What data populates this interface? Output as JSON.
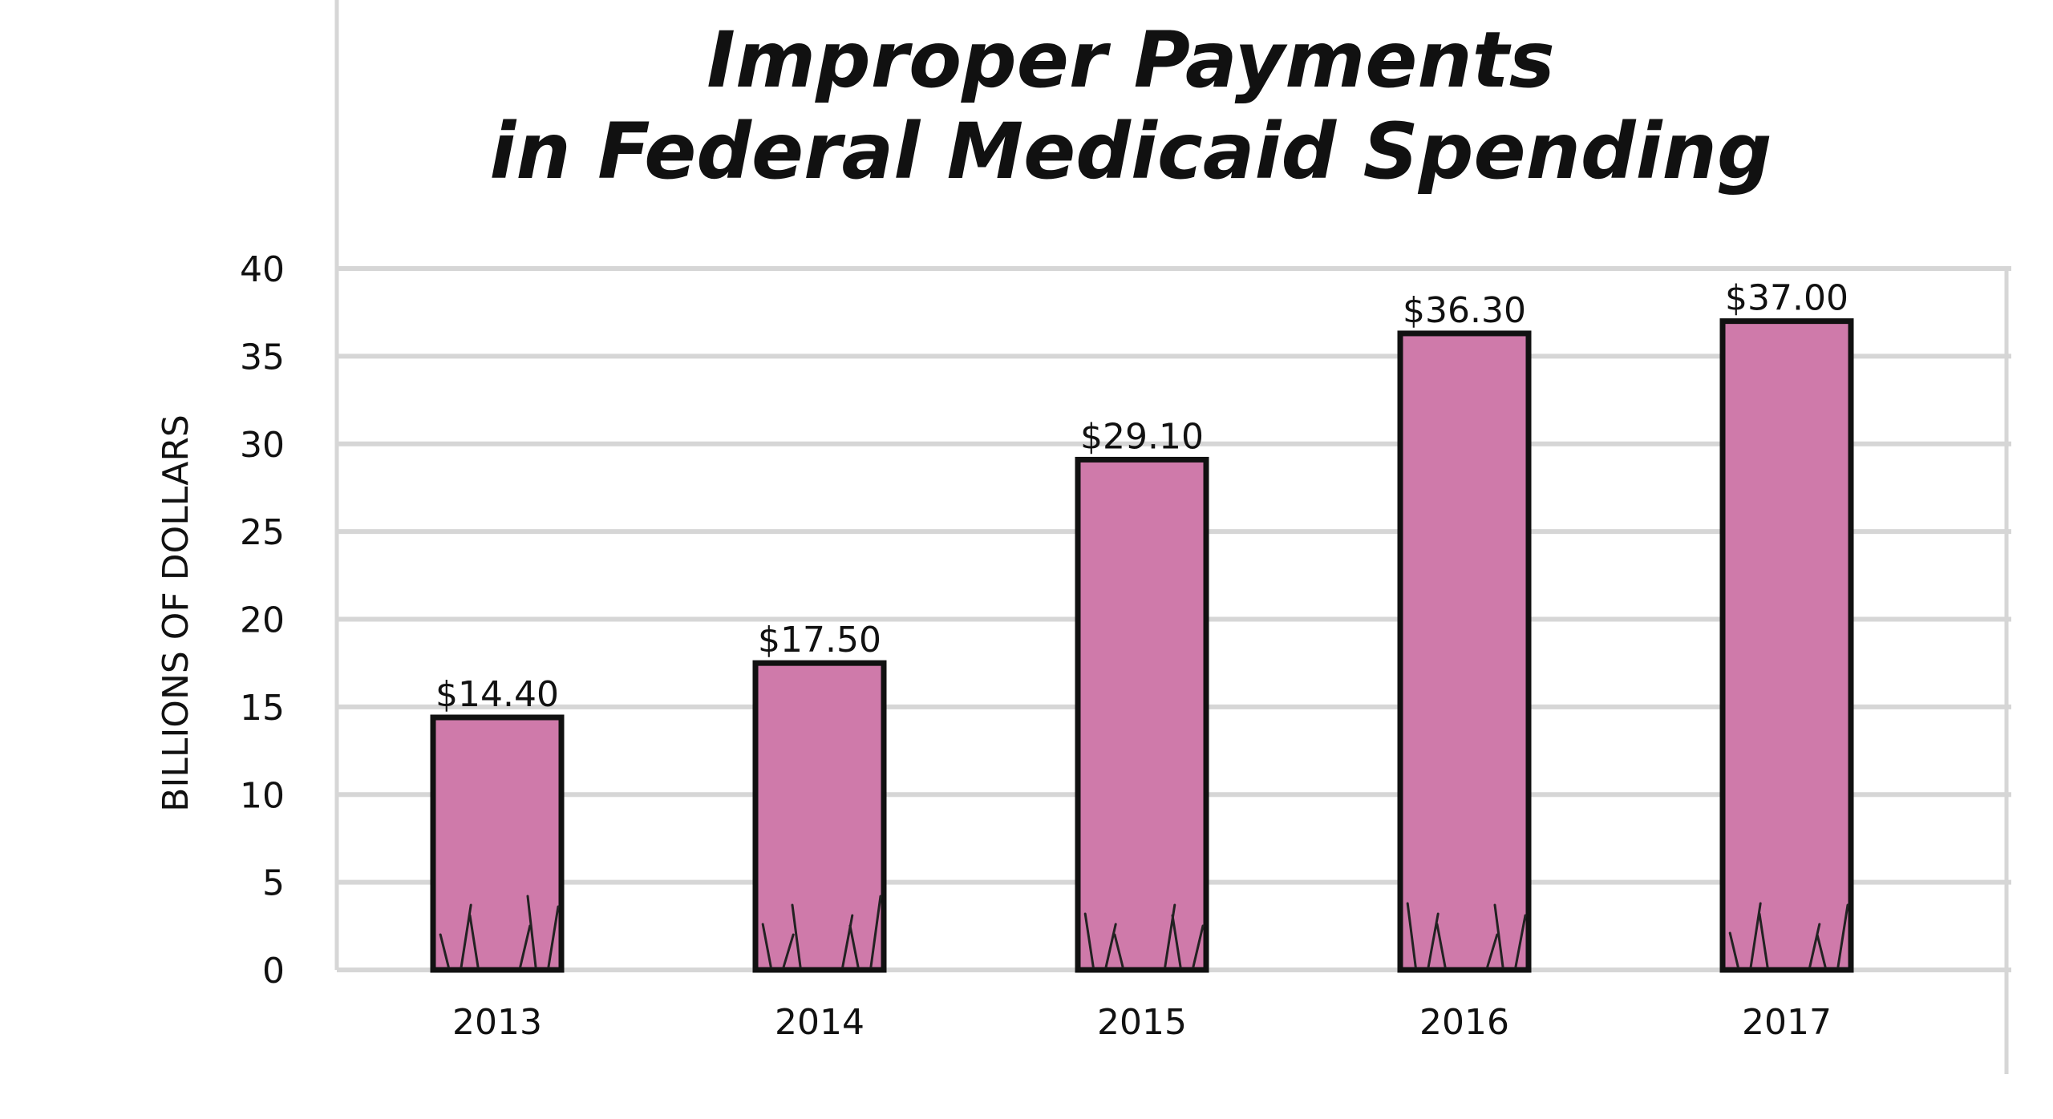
{
  "chart_data": {
    "type": "bar",
    "title": [
      "Improper Payments",
      "in Federal Medicaid Spending"
    ],
    "xlabel": "",
    "ylabel": "BILLIONS OF DOLLARS",
    "categories": [
      "2013",
      "2014",
      "2015",
      "2016",
      "2017"
    ],
    "values": [
      14.4,
      17.5,
      29.1,
      36.3,
      37.0
    ],
    "data_labels": [
      "$14.40",
      "$17.50",
      "$29.10",
      "$36.30",
      "$37.00"
    ],
    "ylim": [
      0,
      40
    ],
    "yticks": [
      0,
      5,
      10,
      15,
      20,
      25,
      30,
      35,
      40
    ],
    "grid": true,
    "legend": "none",
    "colors": {
      "bar_fill": "#cf7aaa",
      "bar_outline": "#111111",
      "grid": "#d6d6d6",
      "text": "#111111"
    }
  }
}
